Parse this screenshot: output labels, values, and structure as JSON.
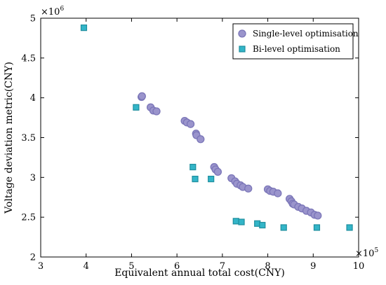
{
  "chart_data": {
    "type": "scatter",
    "xlabel": "Equivalent annual total cost(CNY)",
    "ylabel": "Voltage deviation metric(CNY)",
    "x_exponent_label": "×10",
    "x_exponent": "5",
    "y_exponent_label": "×10",
    "y_exponent": "6",
    "xlim": [
      3,
      10
    ],
    "ylim": [
      2,
      5
    ],
    "xticks": [
      "3",
      "4",
      "5",
      "6",
      "7",
      "8",
      "9",
      "10"
    ],
    "yticks": [
      "2",
      "2.5",
      "3",
      "3.5",
      "4",
      "4.5",
      "5"
    ],
    "grid": false,
    "legend_position": "top-right",
    "colors": {
      "single_fill": "#9a94cc",
      "single_stroke": "#7b76b8",
      "bi_fill": "#33b5c8",
      "bi_stroke": "#1f8e9e"
    },
    "series": [
      {
        "name": "Single-level optimisation",
        "marker": "circle",
        "points": [
          [
            5.22,
            4.01
          ],
          [
            5.23,
            4.02
          ],
          [
            5.42,
            3.88
          ],
          [
            5.48,
            3.84
          ],
          [
            5.55,
            3.83
          ],
          [
            6.17,
            3.71
          ],
          [
            6.22,
            3.69
          ],
          [
            6.3,
            3.67
          ],
          [
            6.42,
            3.55
          ],
          [
            6.43,
            3.53
          ],
          [
            6.52,
            3.48
          ],
          [
            6.82,
            3.13
          ],
          [
            6.85,
            3.1
          ],
          [
            6.9,
            3.07
          ],
          [
            7.2,
            2.99
          ],
          [
            7.28,
            2.95
          ],
          [
            7.32,
            2.92
          ],
          [
            7.4,
            2.9
          ],
          [
            7.45,
            2.88
          ],
          [
            7.57,
            2.86
          ],
          [
            8.0,
            2.85
          ],
          [
            8.05,
            2.83
          ],
          [
            8.12,
            2.82
          ],
          [
            8.22,
            2.8
          ],
          [
            8.48,
            2.73
          ],
          [
            8.52,
            2.7
          ],
          [
            8.55,
            2.67
          ],
          [
            8.58,
            2.66
          ],
          [
            8.67,
            2.63
          ],
          [
            8.75,
            2.61
          ],
          [
            8.85,
            2.58
          ],
          [
            8.95,
            2.56
          ],
          [
            9.03,
            2.53
          ],
          [
            9.1,
            2.52
          ]
        ]
      },
      {
        "name": "Bi-level optimisation",
        "marker": "square",
        "points": [
          [
            3.95,
            4.88
          ],
          [
            5.1,
            3.88
          ],
          [
            6.35,
            3.13
          ],
          [
            6.4,
            2.98
          ],
          [
            6.75,
            2.98
          ],
          [
            7.3,
            2.45
          ],
          [
            7.42,
            2.44
          ],
          [
            7.77,
            2.42
          ],
          [
            7.88,
            2.4
          ],
          [
            8.35,
            2.37
          ],
          [
            9.08,
            2.37
          ],
          [
            9.8,
            2.37
          ]
        ]
      }
    ]
  }
}
